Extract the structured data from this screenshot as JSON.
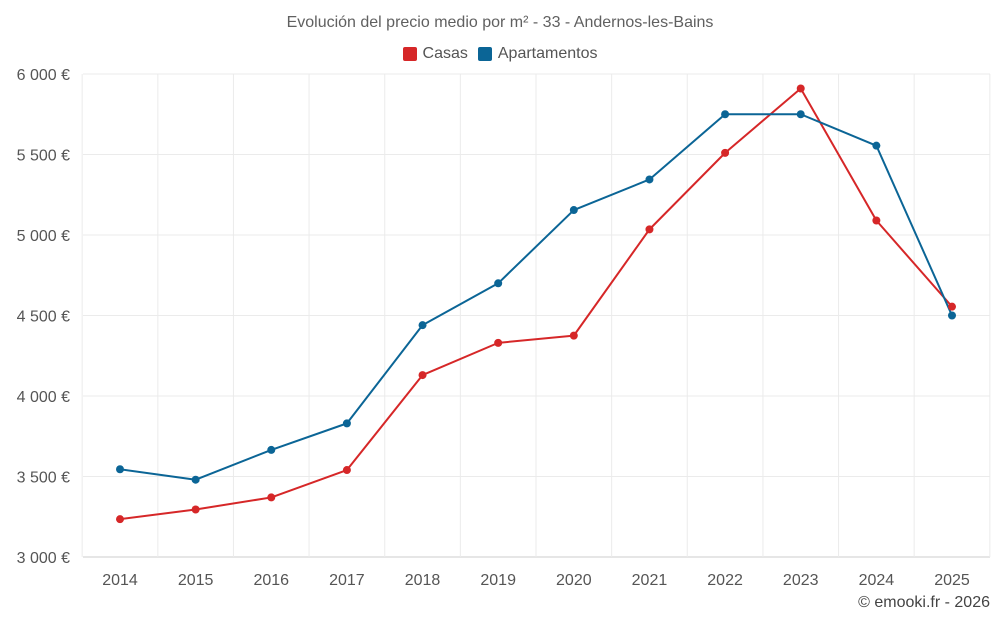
{
  "chart_data": {
    "type": "line",
    "title": "Evolución del precio medio por m² - 33 - Andernos-les-Bains",
    "categories": [
      "2014",
      "2015",
      "2016",
      "2017",
      "2018",
      "2019",
      "2020",
      "2021",
      "2022",
      "2023",
      "2024",
      "2025"
    ],
    "y_ticks": [
      3000,
      3500,
      4000,
      4500,
      5000,
      5500,
      6000
    ],
    "y_tick_labels": [
      "3 000 €",
      "3 500 €",
      "4 000 €",
      "4 500 €",
      "5 000 €",
      "5 500 €",
      "6 000 €"
    ],
    "ylim": [
      3000,
      6000
    ],
    "legend_position": "top-center",
    "grid": true,
    "series": [
      {
        "name": "Casas",
        "color": "#d62728",
        "values": [
          3235,
          3295,
          3370,
          3540,
          4130,
          4330,
          4375,
          5035,
          5510,
          5910,
          5090,
          4555
        ]
      },
      {
        "name": "Apartamentos",
        "color": "#0b6596",
        "values": [
          3545,
          3480,
          3665,
          3830,
          4440,
          4700,
          5155,
          5345,
          5750,
          5750,
          5555,
          4500
        ]
      }
    ]
  },
  "credit": "© emooki.fr - 2026"
}
